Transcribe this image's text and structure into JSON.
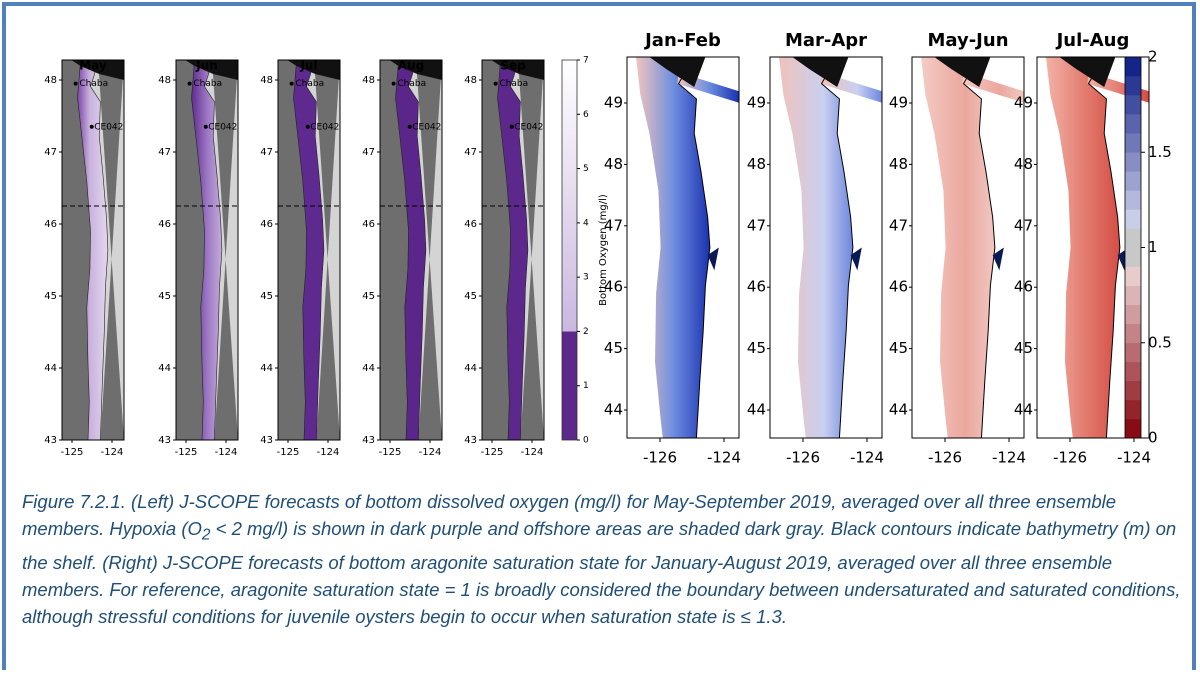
{
  "left_figure": {
    "panels": [
      "May",
      "Jun",
      "Jul",
      "Aug",
      "Sep"
    ],
    "yticks": [
      43,
      44,
      45,
      46,
      47,
      48
    ],
    "xticks": [
      -125,
      -124
    ],
    "annotations": [
      "Chaba",
      "CE042"
    ],
    "colorbar": {
      "label": "Bottom Oxygen (mg/l)",
      "ticks": [
        0,
        1,
        2,
        3,
        4,
        5,
        6,
        7
      ]
    }
  },
  "right_figure": {
    "panels": [
      "Jan-Feb",
      "Mar-Apr",
      "May-Jun",
      "Jul-Aug"
    ],
    "yticks": [
      44,
      45,
      46,
      47,
      48,
      49
    ],
    "xticks": [
      -126,
      -124
    ],
    "colorbar": {
      "ticks": [
        0,
        0.5,
        1,
        1.5,
        2
      ]
    }
  },
  "caption": {
    "parts": [
      "Figure 7.2.1. (Left) J-SCOPE forecasts of bottom dissolved oxygen (mg/l) for May-September 2019, averaged over all three ensemble members. Hypoxia (O",
      "2",
      " < 2 mg/l) is shown in dark purple and offshore areas are shaded dark gray. Black contours indicate bathymetry (m) on the shelf. (Right) J-SCOPE forecasts of bottom aragonite saturation state for January-August 2019, averaged over all three ensemble members. For reference, aragonite saturation state = 1 is broadly considered the boundary between undersaturated and saturated conditions, although stressful conditions for juvenile oysters begin to occur when saturation state is ≤ 1.3."
    ]
  }
}
